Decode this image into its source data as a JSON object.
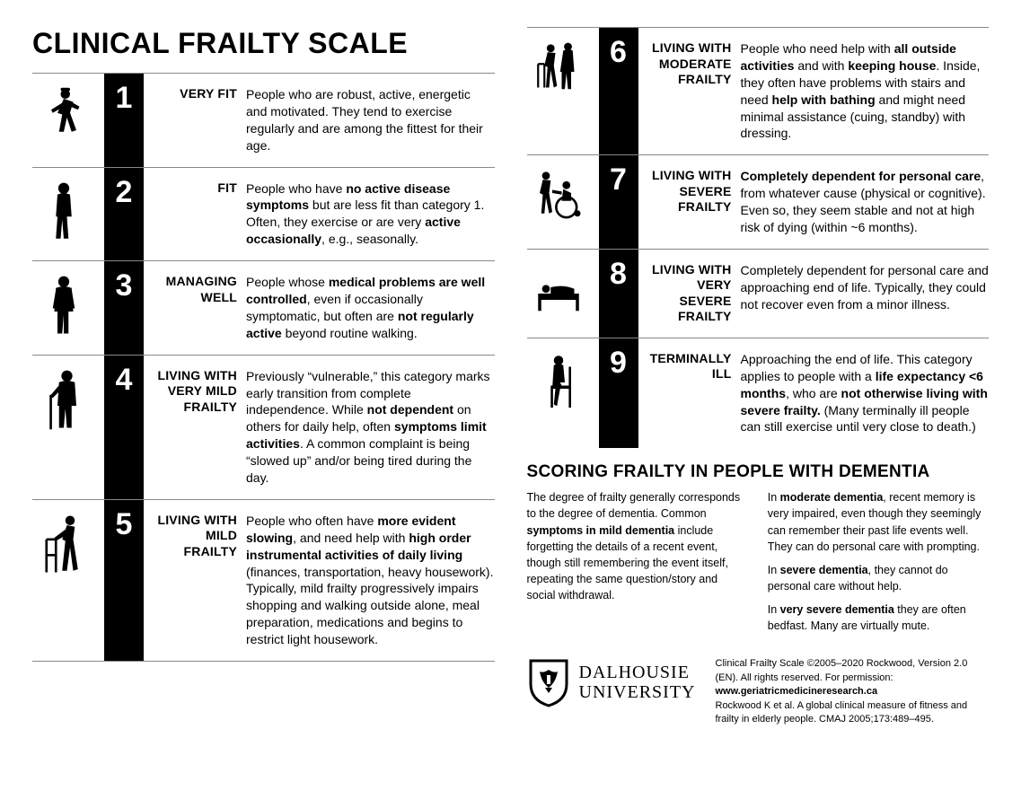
{
  "colors": {
    "bg": "#ffffff",
    "fg": "#000000",
    "rule": "#888888"
  },
  "title": "CLINICAL FRAILTY SCALE",
  "levels": [
    {
      "num": "1",
      "label": "VERY FIT",
      "desc": "People who are robust, active, energetic and motivated. They tend to exercise regularly and are among the fittest for their age."
    },
    {
      "num": "2",
      "label": "FIT",
      "desc": "People who have <b>no active disease symptoms</b> but are less fit than category 1. Often, they exercise or are very <b>active occasionally</b>, e.g., seasonally."
    },
    {
      "num": "3",
      "label": "MANAGING WELL",
      "desc": "People whose <b>medical problems are well controlled</b>, even if occasionally symptomatic, but often are <b>not regularly active</b> beyond routine walking."
    },
    {
      "num": "4",
      "label": "LIVING WITH VERY MILD FRAILTY",
      "desc": "Previously “vulnerable,” this category marks early transition from complete independence. While <b>not dependent</b> on others for daily help, often <b>symptoms limit activities</b>. A common complaint is being “slowed up” and/or being tired during the day."
    },
    {
      "num": "5",
      "label": "LIVING WITH MILD FRAILTY",
      "desc": "People who often have <b>more evident slowing</b>, and need help with <b>high order instrumental activities of daily living</b> (finances, transportation, heavy housework). Typically, mild frailty progressively impairs shopping and walking outside alone, meal preparation, medications and begins to restrict light housework."
    },
    {
      "num": "6",
      "label": "LIVING WITH MODERATE FRAILTY",
      "desc": "People who need help with <b>all outside activities</b> and with <b>keeping house</b>. Inside, they often have problems with stairs and need <b>help with bathing</b> and might need minimal assistance (cuing, standby) with dressing."
    },
    {
      "num": "7",
      "label": "LIVING WITH SEVERE FRAILTY",
      "desc": "<b>Completely dependent for personal care</b>, from whatever cause (physical or cognitive). Even so, they seem stable and not at high risk of dying (within ~6 months)."
    },
    {
      "num": "8",
      "label": "LIVING WITH VERY SEVERE FRAILTY",
      "desc": "Completely dependent for personal care and approaching end of life. Typically, they could not recover even from a minor illness."
    },
    {
      "num": "9",
      "label": "TERMINALLY ILL",
      "desc": "Approaching the end of life. This category applies to people with a <b>life expectancy &lt;6 months</b>, who are <b>not otherwise living with severe frailty.</b> (Many terminally ill people can still exercise until very close to death.)"
    }
  ],
  "dementia": {
    "heading": "SCORING FRAILTY IN PEOPLE WITH DEMENTIA",
    "left": "The degree of frailty generally corresponds to the degree of dementia. Common <b>symptoms in mild dementia</b> include forgetting the details of a recent event, though still remembering the event itself, repeating the same question/story and social withdrawal.",
    "right1": "In <b>moderate dementia</b>, recent memory is very impaired, even though they seemingly can remember their past life events well. They can do personal care with prompting.",
    "right2": "In <b>severe dementia</b>, they cannot do personal care without help.",
    "right3": "In <b>very severe dementia</b> they are often bedfast. Many are virtually mute."
  },
  "university": {
    "line1": "DALHOUSIE",
    "line2": "UNIVERSITY"
  },
  "credit": "Clinical Frailty Scale ©2005–2020 Rockwood, Version 2.0 (EN). All rights reserved. For permission: <b>www.geriatricmedicineresearch.ca</b><br>Rockwood K et al. A global clinical measure of fitness and frailty in elderly people. CMAJ 2005;173:489–495."
}
